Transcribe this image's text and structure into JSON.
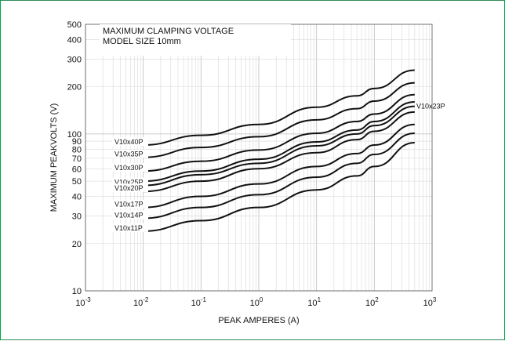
{
  "chart_data": {
    "type": "line",
    "title": "MAXIMUM CLAMPING VOLTAGE",
    "subtitle": "MODEL SIZE 10mm",
    "xlabel": "PEAK AMPERES (A)",
    "ylabel": "MAXIMUM PEAKVOLTS (V)",
    "x_scale": "log",
    "y_scale": "log",
    "xlim": [
      0.001,
      1000
    ],
    "ylim": [
      10,
      500
    ],
    "grid": true,
    "x_ticks": [
      {
        "base": "10",
        "exp": "-3"
      },
      {
        "base": "10",
        "exp": "-2"
      },
      {
        "base": "10",
        "exp": "-1"
      },
      {
        "base": "10",
        "exp": "0"
      },
      {
        "base": "10",
        "exp": "1"
      },
      {
        "base": "10",
        "exp": "2"
      },
      {
        "base": "10",
        "exp": "3"
      }
    ],
    "y_ticks": [
      "10",
      "20",
      "30",
      "40",
      "50",
      "60",
      "70",
      "80",
      "90",
      "100",
      "200",
      "300",
      "400",
      "500"
    ],
    "series": [
      {
        "name": "V10x40P",
        "x": [
          0.01,
          0.1,
          1,
          10,
          50,
          100,
          500
        ],
        "values": [
          85,
          98,
          115,
          148,
          175,
          195,
          255
        ]
      },
      {
        "name": "V10x35P",
        "x": [
          0.01,
          0.1,
          1,
          10,
          50,
          100,
          500
        ],
        "values": [
          71,
          82,
          96,
          123,
          145,
          162,
          212
        ]
      },
      {
        "name": "V10x30P",
        "x": [
          0.01,
          0.1,
          1,
          10,
          50,
          100,
          500
        ],
        "values": [
          58,
          67,
          79,
          101,
          120,
          134,
          178
        ]
      },
      {
        "name": "V10x23P",
        "x": [
          0.01,
          0.1,
          1,
          10,
          50,
          100,
          500
        ],
        "values": [
          50,
          58,
          69,
          89,
          106,
          120,
          160
        ]
      },
      {
        "name": "V10x25P",
        "x": [
          0.01,
          0.1,
          1,
          10,
          50,
          100,
          500
        ],
        "values": [
          47,
          55,
          65,
          84,
          100,
          113,
          150
        ]
      },
      {
        "name": "V10x20P",
        "x": [
          0.01,
          0.1,
          1,
          10,
          50,
          100,
          500
        ],
        "values": [
          43,
          50,
          60,
          76,
          92,
          104,
          138
        ]
      },
      {
        "name": "V10x17P",
        "x": [
          0.01,
          0.1,
          1,
          10,
          50,
          100,
          500
        ],
        "values": [
          34,
          40,
          48,
          62,
          75,
          85,
          115
        ]
      },
      {
        "name": "V10x14P",
        "x": [
          0.01,
          0.1,
          1,
          10,
          50,
          100,
          500
        ],
        "values": [
          29,
          34,
          41,
          53,
          65,
          74,
          101
        ]
      },
      {
        "name": "V10x11P",
        "x": [
          0.01,
          0.1,
          1,
          10,
          50,
          100,
          500
        ],
        "values": [
          24,
          28,
          34,
          44,
          54,
          62,
          88
        ]
      }
    ]
  }
}
